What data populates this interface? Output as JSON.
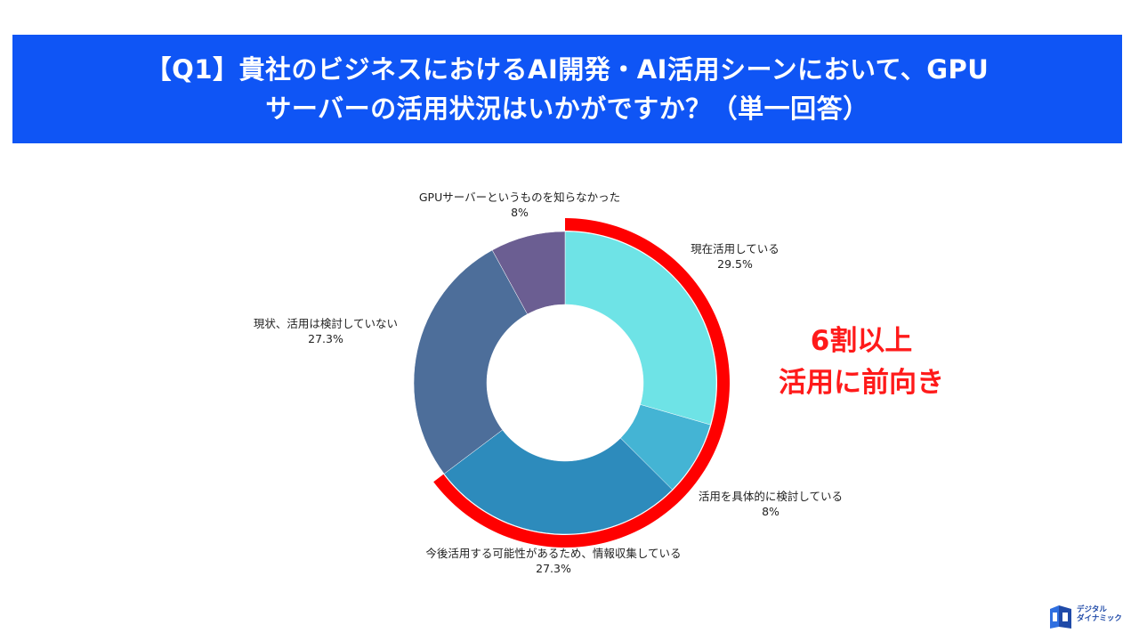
{
  "title": {
    "line1": "【Q1】貴社のビジネスにおけるAI開発・AI活用シーンにおいて、GPU",
    "line2": "サーバーの活用状況はいかがですか？（単一回答）"
  },
  "callout": {
    "line1": "6割以上",
    "line2": "活用に前向き"
  },
  "logo": {
    "line1": "デジタル",
    "line2": "ダイナミック"
  },
  "colors": {
    "banner": "#0f55f5",
    "highlight_arc": "#ff0000",
    "callout_text": "#ff1a1a"
  },
  "chart_data": {
    "type": "pie",
    "style": "donut",
    "start": "12 o'clock, clockwise",
    "categories": [
      "現在活用している",
      "活用を具体的に検討している",
      "今後活用する可能性があるため、情報収集している",
      "現状、活用は検討していない",
      "GPUサーバーというものを知らなかった"
    ],
    "values": [
      29.5,
      8,
      27.3,
      27.3,
      8
    ],
    "value_labels": [
      "29.5%",
      "8%",
      "27.3%",
      "27.3%",
      "8%"
    ],
    "colors": [
      "#6ee3e6",
      "#44b4d4",
      "#2d8bbc",
      "#4d6e9a",
      "#6b5e92"
    ],
    "highlight": {
      "categories": [
        "現在活用している",
        "活用を具体的に検討している",
        "今後活用する可能性があるため、情報収集している"
      ],
      "color": "#ff0000"
    }
  }
}
